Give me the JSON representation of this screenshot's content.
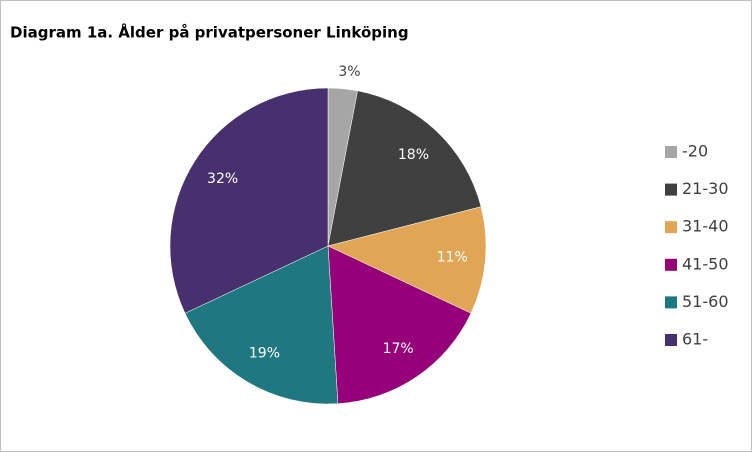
{
  "chart_data": {
    "type": "pie",
    "title": "Diagram 1a. Ålder på privatpersoner Linköping",
    "categories": [
      "-20",
      "21-30",
      "31-40",
      "41-50",
      "51-60",
      "61-"
    ],
    "values": [
      3,
      18,
      11,
      17,
      19,
      32
    ],
    "value_labels": [
      "3%",
      "18%",
      "11%",
      "17%",
      "19%",
      "32%"
    ],
    "colors": [
      "#a6a6a6",
      "#404040",
      "#e0a656",
      "#960078",
      "#1f7780",
      "#46316e"
    ],
    "legend": "right"
  }
}
